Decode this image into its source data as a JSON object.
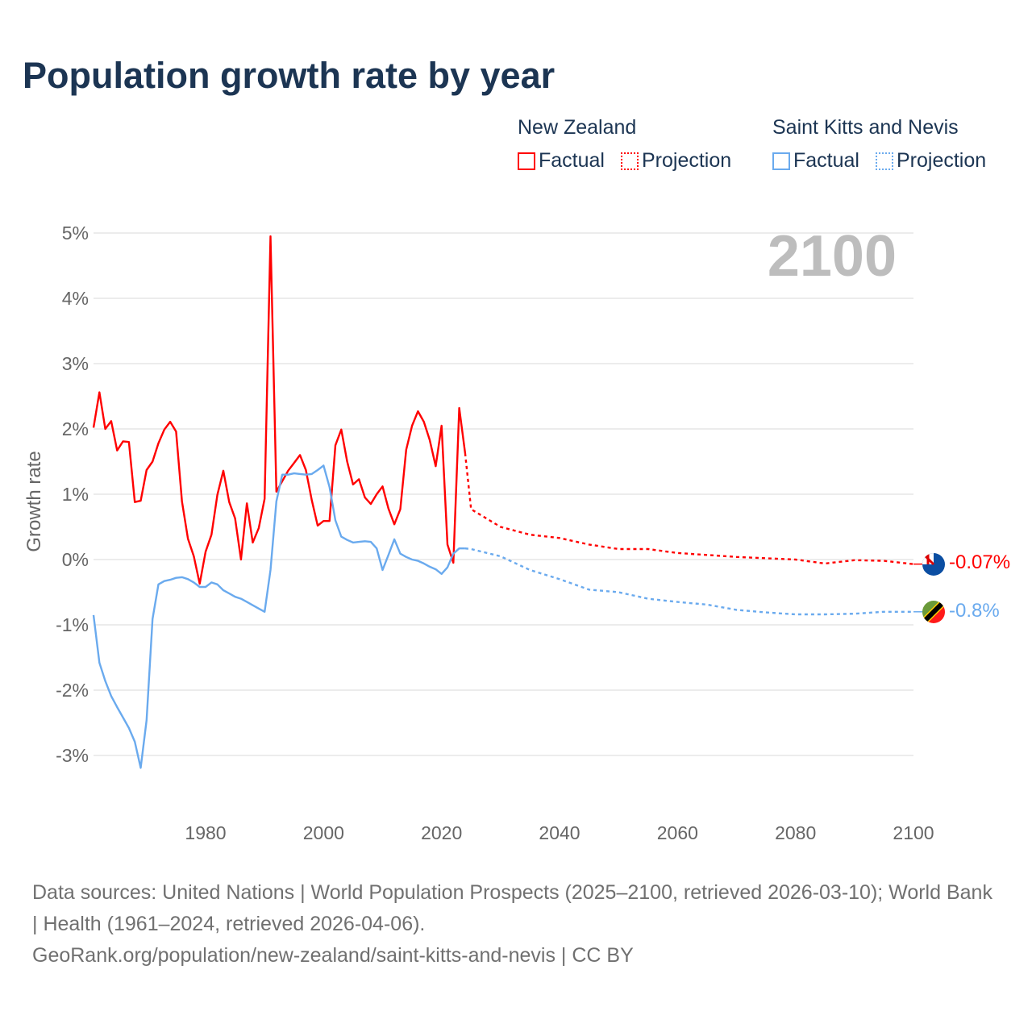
{
  "title": "Population growth rate by year",
  "legend": [
    {
      "country": "New Zealand",
      "factual": "Factual",
      "projection": "Projection",
      "color": "#ff0000"
    },
    {
      "country": "Saint Kitts and Nevis",
      "factual": "Factual",
      "projection": "Projection",
      "color": "#6aaaee"
    }
  ],
  "year_label": "2100",
  "end_labels": {
    "nz": "-0.07%",
    "skn": "-0.8%"
  },
  "footer": {
    "sources": "Data sources: United Nations | World Population Prospects (2025–2100, retrieved 2026-03-10); World Bank | Health (1961–2024, retrieved 2026-04-06).",
    "link": "GeoRank.org/population/new-zealand/saint-kitts-and-nevis | CC BY"
  },
  "chart_data": {
    "type": "line",
    "title": "Population growth rate by year",
    "xlabel": "",
    "ylabel": "Growth rate",
    "xlim": [
      1961,
      2100
    ],
    "ylim": [
      -3.5,
      5.3
    ],
    "yticks": [
      5,
      4,
      3,
      2,
      1,
      0,
      -1,
      -2,
      -3
    ],
    "ytick_labels": [
      "5%",
      "4%",
      "3%",
      "2%",
      "1%",
      "0%",
      "-1%",
      "-2%",
      "-3%"
    ],
    "xticks": [
      1980,
      2000,
      2020,
      2040,
      2060,
      2080,
      2100
    ],
    "xtick_labels": [
      "1980",
      "2000",
      "2020",
      "2040",
      "2060",
      "2080",
      "2100"
    ],
    "grid": true,
    "legend_position": "top-right",
    "series": [
      {
        "name": "New Zealand",
        "color": "#ff0000",
        "factual": {
          "x": [
            1961,
            1962,
            1963,
            1964,
            1965,
            1966,
            1967,
            1968,
            1969,
            1970,
            1971,
            1972,
            1973,
            1974,
            1975,
            1976,
            1977,
            1978,
            1979,
            1980,
            1981,
            1982,
            1983,
            1984,
            1985,
            1986,
            1987,
            1988,
            1989,
            1990,
            1991,
            1992,
            1993,
            1994,
            1995,
            1996,
            1997,
            1998,
            1999,
            2000,
            2001,
            2002,
            2003,
            2004,
            2005,
            2006,
            2007,
            2008,
            2009,
            2010,
            2011,
            2012,
            2013,
            2014,
            2015,
            2016,
            2017,
            2018,
            2019,
            2020,
            2021,
            2022,
            2023,
            2024
          ],
          "y": [
            2.02,
            2.56,
            2.0,
            2.12,
            1.67,
            1.81,
            1.8,
            0.88,
            0.9,
            1.37,
            1.5,
            1.78,
            1.99,
            2.11,
            1.96,
            0.89,
            0.32,
            0.05,
            -0.37,
            0.12,
            0.38,
            0.99,
            1.36,
            0.88,
            0.63,
            0.0,
            0.86,
            0.26,
            0.48,
            0.93,
            4.95,
            1.04,
            1.2,
            1.36,
            1.48,
            1.6,
            1.37,
            0.91,
            0.52,
            0.59,
            0.59,
            1.75,
            1.99,
            1.5,
            1.15,
            1.23,
            0.95,
            0.85,
            1.0,
            1.12,
            0.78,
            0.54,
            0.77,
            1.68,
            2.05,
            2.27,
            2.11,
            1.83,
            1.43,
            2.05,
            0.23,
            -0.05,
            2.32,
            1.63
          ]
        },
        "projection": {
          "x": [
            2024,
            2025,
            2030,
            2035,
            2040,
            2045,
            2050,
            2055,
            2060,
            2065,
            2070,
            2075,
            2080,
            2085,
            2090,
            2095,
            2100
          ],
          "y": [
            1.63,
            0.77,
            0.5,
            0.38,
            0.33,
            0.23,
            0.16,
            0.16,
            0.1,
            0.07,
            0.04,
            0.02,
            0.0,
            -0.06,
            -0.01,
            -0.02,
            -0.07
          ]
        }
      },
      {
        "name": "Saint Kitts and Nevis",
        "color": "#6aaaee",
        "factual": {
          "x": [
            1961,
            1962,
            1963,
            1964,
            1965,
            1966,
            1967,
            1968,
            1969,
            1970,
            1971,
            1972,
            1973,
            1974,
            1975,
            1976,
            1977,
            1978,
            1979,
            1980,
            1981,
            1982,
            1983,
            1984,
            1985,
            1986,
            1987,
            1988,
            1989,
            1990,
            1991,
            1992,
            1993,
            1994,
            1995,
            1996,
            1997,
            1998,
            1999,
            2000,
            2001,
            2002,
            2003,
            2004,
            2005,
            2006,
            2007,
            2008,
            2009,
            2010,
            2011,
            2012,
            2013,
            2014,
            2015,
            2016,
            2017,
            2018,
            2019,
            2020,
            2021,
            2022,
            2023,
            2024
          ],
          "y": [
            -0.85,
            -1.58,
            -1.86,
            -2.09,
            -2.26,
            -2.42,
            -2.58,
            -2.79,
            -3.19,
            -2.46,
            -0.91,
            -0.38,
            -0.33,
            -0.31,
            -0.28,
            -0.27,
            -0.3,
            -0.35,
            -0.42,
            -0.42,
            -0.35,
            -0.38,
            -0.47,
            -0.52,
            -0.57,
            -0.6,
            -0.65,
            -0.7,
            -0.75,
            -0.8,
            -0.16,
            0.89,
            1.3,
            1.3,
            1.32,
            1.31,
            1.3,
            1.31,
            1.37,
            1.44,
            1.11,
            0.6,
            0.35,
            0.3,
            0.26,
            0.27,
            0.28,
            0.27,
            0.17,
            -0.16,
            0.07,
            0.31,
            0.09,
            0.04,
            0.0,
            -0.02,
            -0.06,
            -0.11,
            -0.15,
            -0.22,
            -0.12,
            0.09,
            0.17,
            0.17
          ]
        },
        "projection": {
          "x": [
            2024,
            2025,
            2030,
            2035,
            2040,
            2045,
            2050,
            2055,
            2060,
            2065,
            2070,
            2075,
            2080,
            2085,
            2090,
            2095,
            2100
          ],
          "y": [
            0.17,
            0.16,
            0.05,
            -0.16,
            -0.3,
            -0.46,
            -0.5,
            -0.6,
            -0.65,
            -0.69,
            -0.77,
            -0.81,
            -0.84,
            -0.84,
            -0.83,
            -0.8,
            -0.8
          ]
        }
      }
    ]
  }
}
